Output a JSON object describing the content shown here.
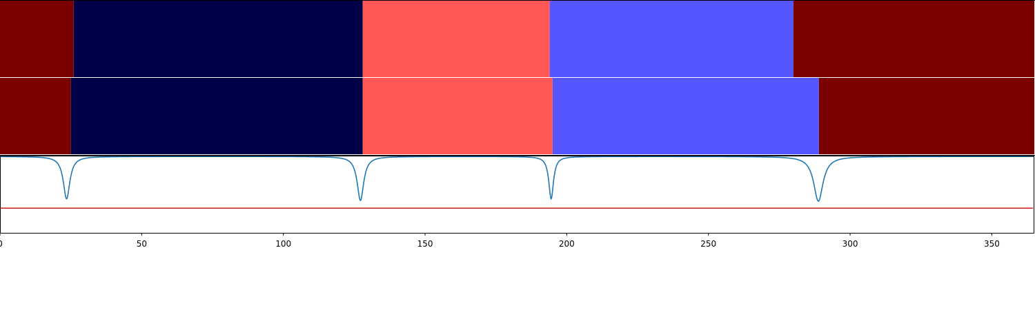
{
  "chart_data": {
    "type": "segmentation-with-signal",
    "x_range": [
      0,
      365
    ],
    "x_ticks": [
      0,
      50,
      100,
      150,
      200,
      250,
      300,
      350
    ],
    "colors": {
      "dark_red": "#7b0000",
      "navy": "#000048",
      "light_red": "#ff5656",
      "blue": "#5656ff",
      "signal": "#1f77b4",
      "threshold": "#d62728"
    },
    "tracks": [
      {
        "segments": [
          {
            "start": 0,
            "end": 26,
            "color": "dark_red"
          },
          {
            "start": 26,
            "end": 128,
            "color": "navy"
          },
          {
            "start": 128,
            "end": 194,
            "color": "light_red"
          },
          {
            "start": 194,
            "end": 280,
            "color": "blue"
          },
          {
            "start": 280,
            "end": 365,
            "color": "dark_red"
          }
        ]
      },
      {
        "segments": [
          {
            "start": 0,
            "end": 25,
            "color": "dark_red"
          },
          {
            "start": 25,
            "end": 128,
            "color": "navy"
          },
          {
            "start": 128,
            "end": 195,
            "color": "light_red"
          },
          {
            "start": 195,
            "end": 289,
            "color": "blue"
          },
          {
            "start": 289,
            "end": 365,
            "color": "dark_red"
          }
        ]
      }
    ],
    "signal": {
      "ylim": [
        -1,
        0
      ],
      "dips": [
        {
          "x": 23.5,
          "depth": 0.55,
          "width": 1.4
        },
        {
          "x": 127.2,
          "depth": 0.57,
          "width": 1.4
        },
        {
          "x": 194.5,
          "depth": 0.55,
          "width": 1.0
        },
        {
          "x": 288.8,
          "depth": 0.58,
          "width": 2.0
        }
      ],
      "threshold": -0.68
    }
  }
}
